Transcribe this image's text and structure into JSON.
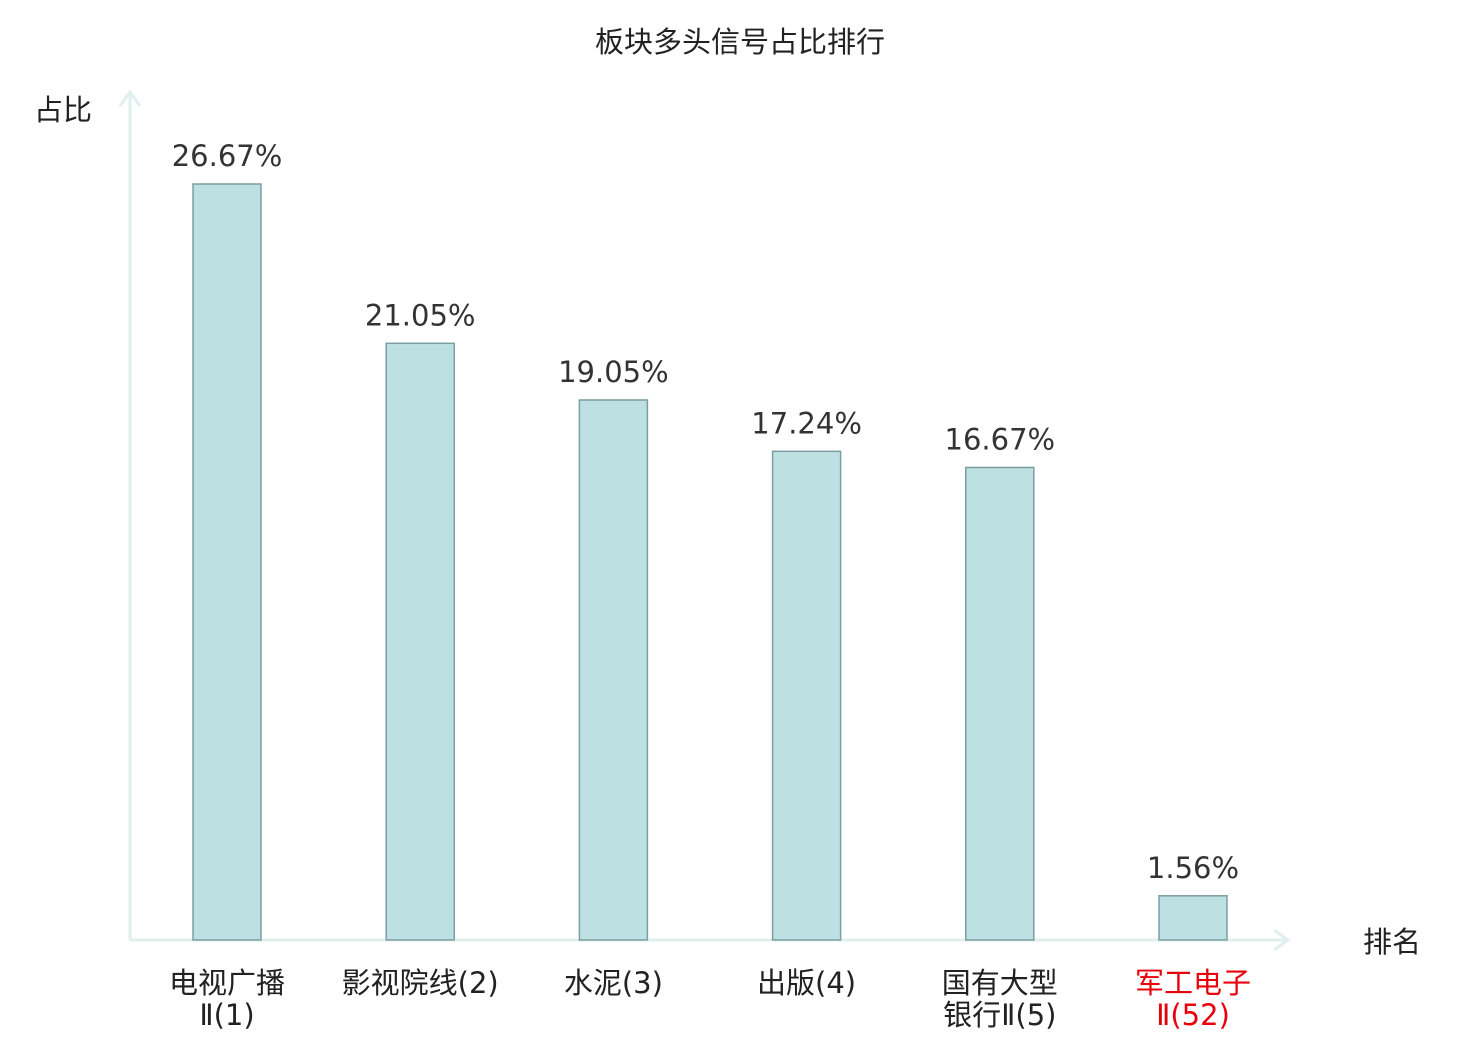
{
  "chart_data": {
    "type": "bar",
    "title": "板块多头信号占比排行",
    "ylabel": "占比",
    "xlabel": "排名",
    "categories": [
      [
        "电视广播",
        "Ⅱ(1)"
      ],
      [
        "影视院线(2)"
      ],
      [
        "水泥(3)"
      ],
      [
        "出版(4)"
      ],
      [
        "国有大型",
        "银行Ⅱ(5)"
      ],
      [
        "军工电子",
        "Ⅱ(52)"
      ]
    ],
    "values": [
      26.67,
      21.05,
      19.05,
      17.24,
      16.67,
      1.56
    ],
    "value_labels": [
      "26.67%",
      "21.05%",
      "19.05%",
      "17.24%",
      "16.67%",
      "1.56%"
    ],
    "highlight_index": 5,
    "ylim": [
      0,
      30
    ],
    "grid": false,
    "legend": "none"
  },
  "colors": {
    "bar_fill": "#bde0e2",
    "bar_stroke": "#7d9ea1",
    "axis": "#dff0ee",
    "highlight_text": "#e8000b"
  }
}
